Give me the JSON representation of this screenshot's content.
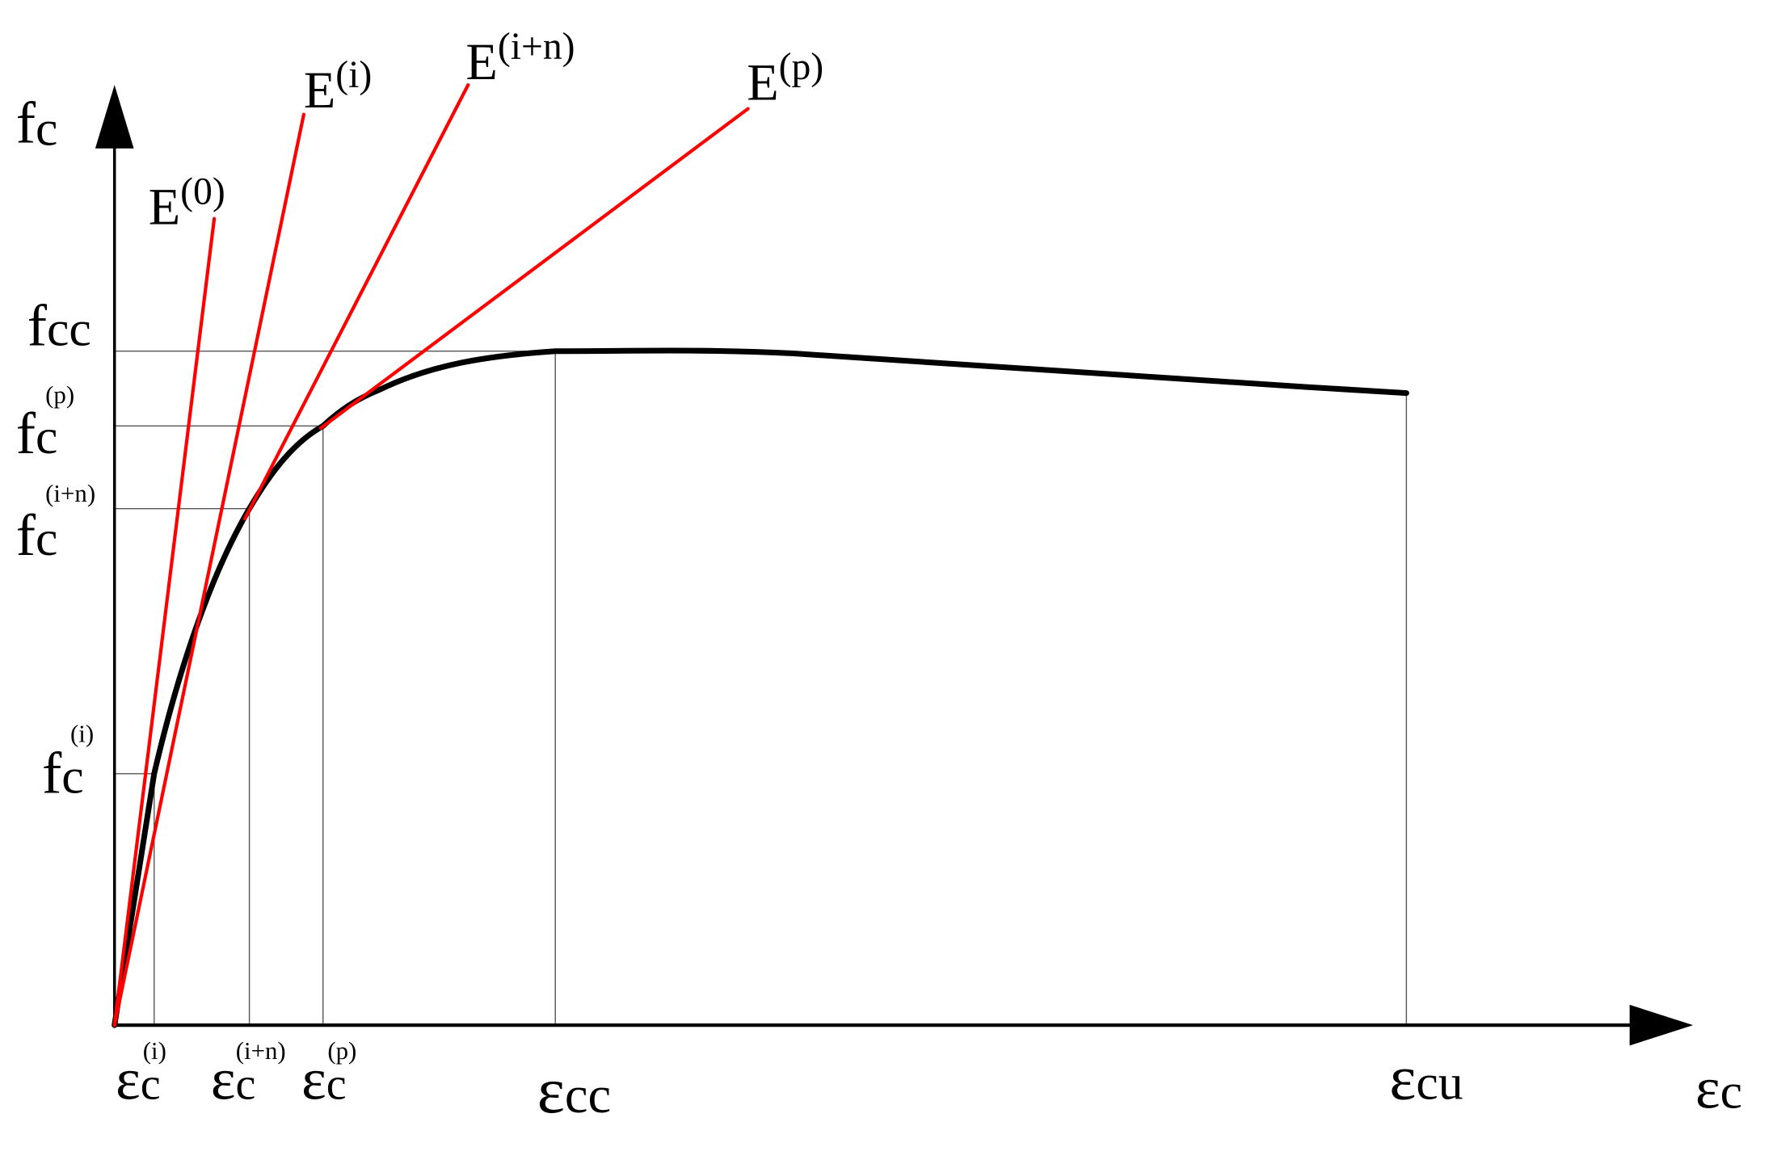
{
  "colors": {
    "curve": "#000000",
    "tangents": "#ff0000",
    "axes": "#000000",
    "guides": "#555555"
  },
  "axes": {
    "y_label": {
      "base": "f",
      "sub": "c"
    },
    "x_label": {
      "base": "ε",
      "sub": "c"
    }
  },
  "y_marks": [
    {
      "base": "f",
      "sub": "cc",
      "sup": ""
    },
    {
      "base": "f",
      "sub": "c",
      "sup": "(p)"
    },
    {
      "base": "f",
      "sub": "c",
      "sup": "(i+n)"
    },
    {
      "base": "f",
      "sub": "c",
      "sup": "(i)"
    }
  ],
  "x_marks": [
    {
      "base": "ε",
      "sub": "c",
      "sup": "(i)"
    },
    {
      "base": "ε",
      "sub": "c",
      "sup": "(i+n)"
    },
    {
      "base": "ε",
      "sub": "c",
      "sup": "(p)"
    },
    {
      "base": "ε",
      "sub": "cc",
      "sup": ""
    },
    {
      "base": "ε",
      "sub": "cu",
      "sup": ""
    }
  ],
  "tangents": [
    {
      "base": "E",
      "sup": "(0)"
    },
    {
      "base": "E",
      "sup": "(i)"
    },
    {
      "base": "E",
      "sup": "(i+n)"
    },
    {
      "base": "E",
      "sup": "(p)"
    }
  ]
}
